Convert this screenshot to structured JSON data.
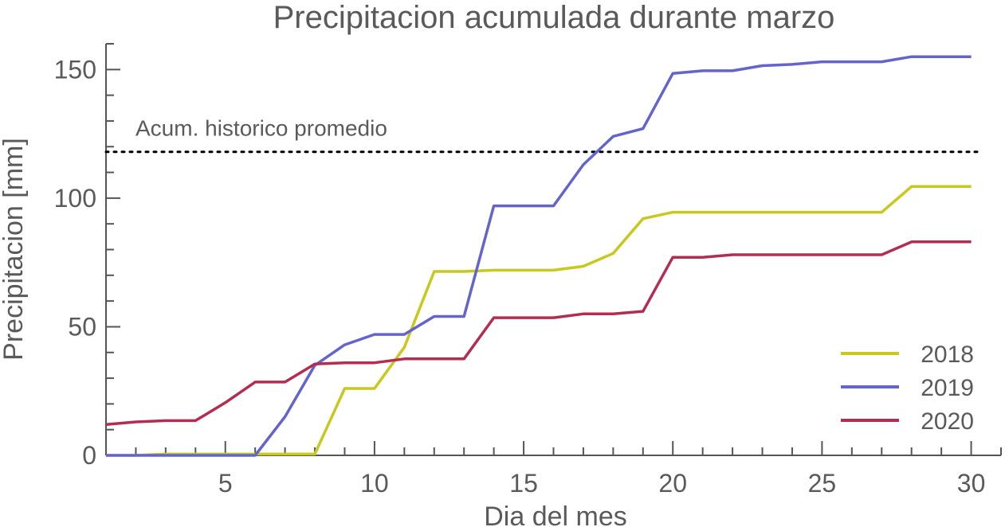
{
  "chart_data": {
    "type": "line",
    "title": "Precipitacion acumulada durante marzo",
    "xlabel": "Dia del mes",
    "ylabel": "Precipitacion [mm]",
    "xlim": [
      1,
      31
    ],
    "ylim": [
      0,
      160
    ],
    "x_ticks": [
      5,
      10,
      15,
      20,
      25,
      30
    ],
    "y_ticks": [
      0,
      50,
      100,
      150
    ],
    "grid": false,
    "legend_position": "bottom-right",
    "x": [
      1,
      2,
      3,
      4,
      5,
      6,
      7,
      8,
      9,
      10,
      11,
      12,
      13,
      14,
      15,
      16,
      17,
      18,
      19,
      20,
      21,
      22,
      23,
      24,
      25,
      26,
      27,
      28,
      29,
      30
    ],
    "series": [
      {
        "name": "2018",
        "color": "#c8c81e",
        "values": [
          0,
          0,
          0.5,
          0.5,
          0.5,
          0.5,
          0.5,
          0.5,
          26,
          26,
          42,
          71.5,
          71.5,
          72,
          72,
          72,
          73.5,
          78.5,
          92,
          94.5,
          94.5,
          94.5,
          94.5,
          94.5,
          94.5,
          94.5,
          94.5,
          104.5,
          104.5,
          104.5
        ]
      },
      {
        "name": "2019",
        "color": "#6464cd",
        "values": [
          0,
          0,
          0,
          0,
          0,
          0,
          15,
          35,
          43,
          47,
          47,
          54,
          54,
          97,
          97,
          97,
          113,
          124,
          127,
          148.5,
          149.5,
          149.5,
          151.5,
          152,
          153,
          153,
          153,
          155,
          155,
          155
        ]
      },
      {
        "name": "2020",
        "color": "#b42d50",
        "values": [
          12,
          13,
          13.5,
          13.5,
          20.5,
          28.5,
          28.5,
          35.5,
          36,
          36,
          37.5,
          37.5,
          37.5,
          53.5,
          53.5,
          53.5,
          55,
          55,
          56,
          77,
          77,
          78,
          78,
          78,
          78,
          78,
          78,
          83,
          83,
          83
        ]
      }
    ],
    "reference_line": {
      "label": "Acum. historico promedio",
      "value": 118,
      "style": "dotted",
      "color": "#000000"
    }
  }
}
